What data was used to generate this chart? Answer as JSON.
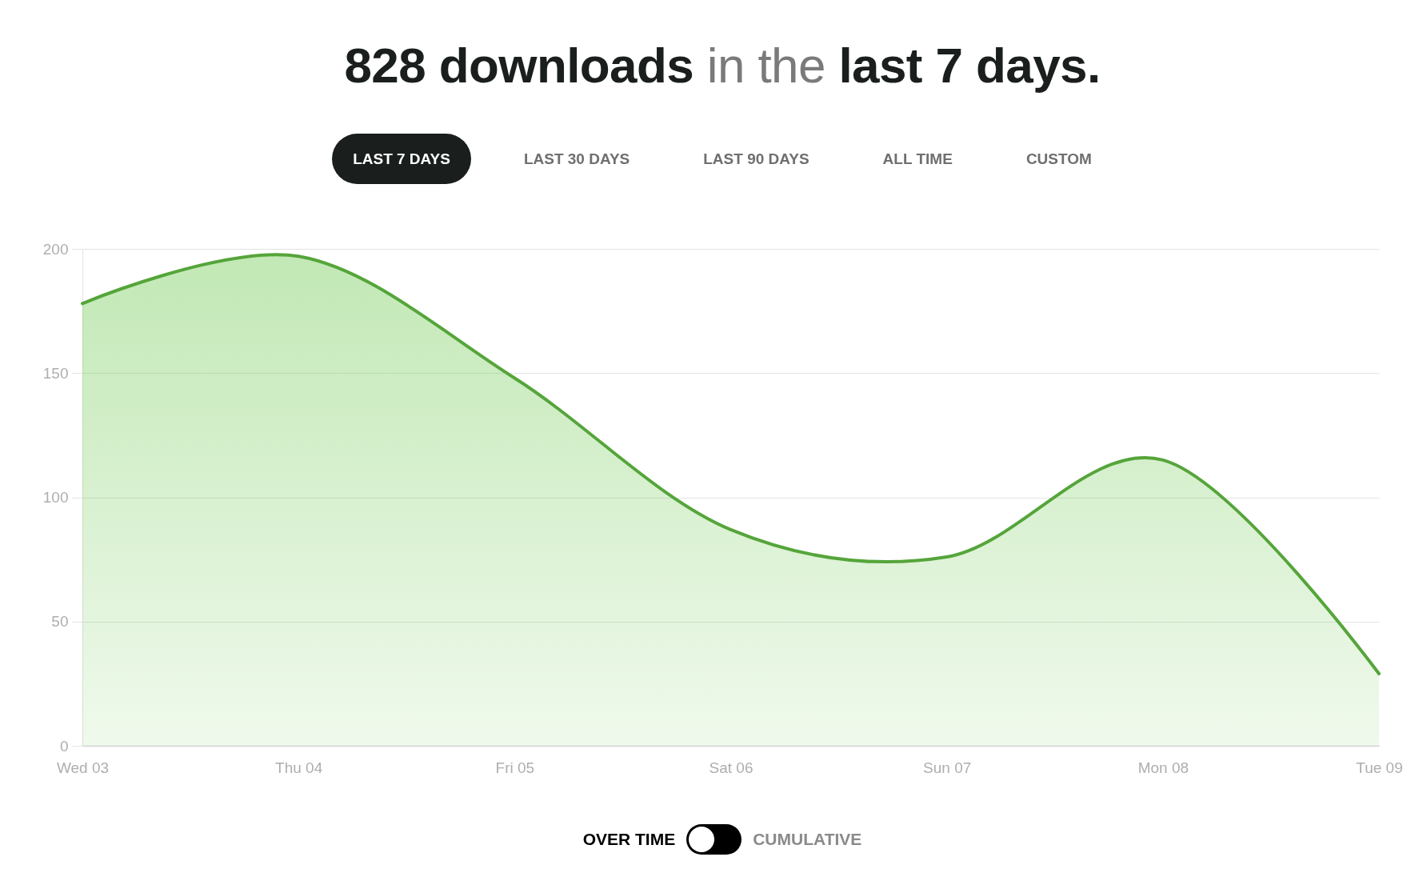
{
  "chart_data": {
    "type": "area",
    "title": "828 downloads in the last 7 days.",
    "categories": [
      "Wed 03",
      "Thu 04",
      "Fri 05",
      "Sat 06",
      "Sun 07",
      "Mon 08",
      "Tue 09"
    ],
    "values": [
      178,
      197,
      148,
      87,
      76,
      115,
      29
    ],
    "color": "#55a53a",
    "ylim": [
      0,
      200
    ],
    "yticks": [
      0,
      50,
      100,
      150,
      200
    ],
    "grid": "y",
    "annotations": [
      "LAST 7 DAYS",
      "LAST 30 DAYS",
      "LAST 90 DAYS",
      "ALL TIME",
      "CUSTOM",
      "OVER TIME",
      "CUMULATIVE"
    ]
  }
}
